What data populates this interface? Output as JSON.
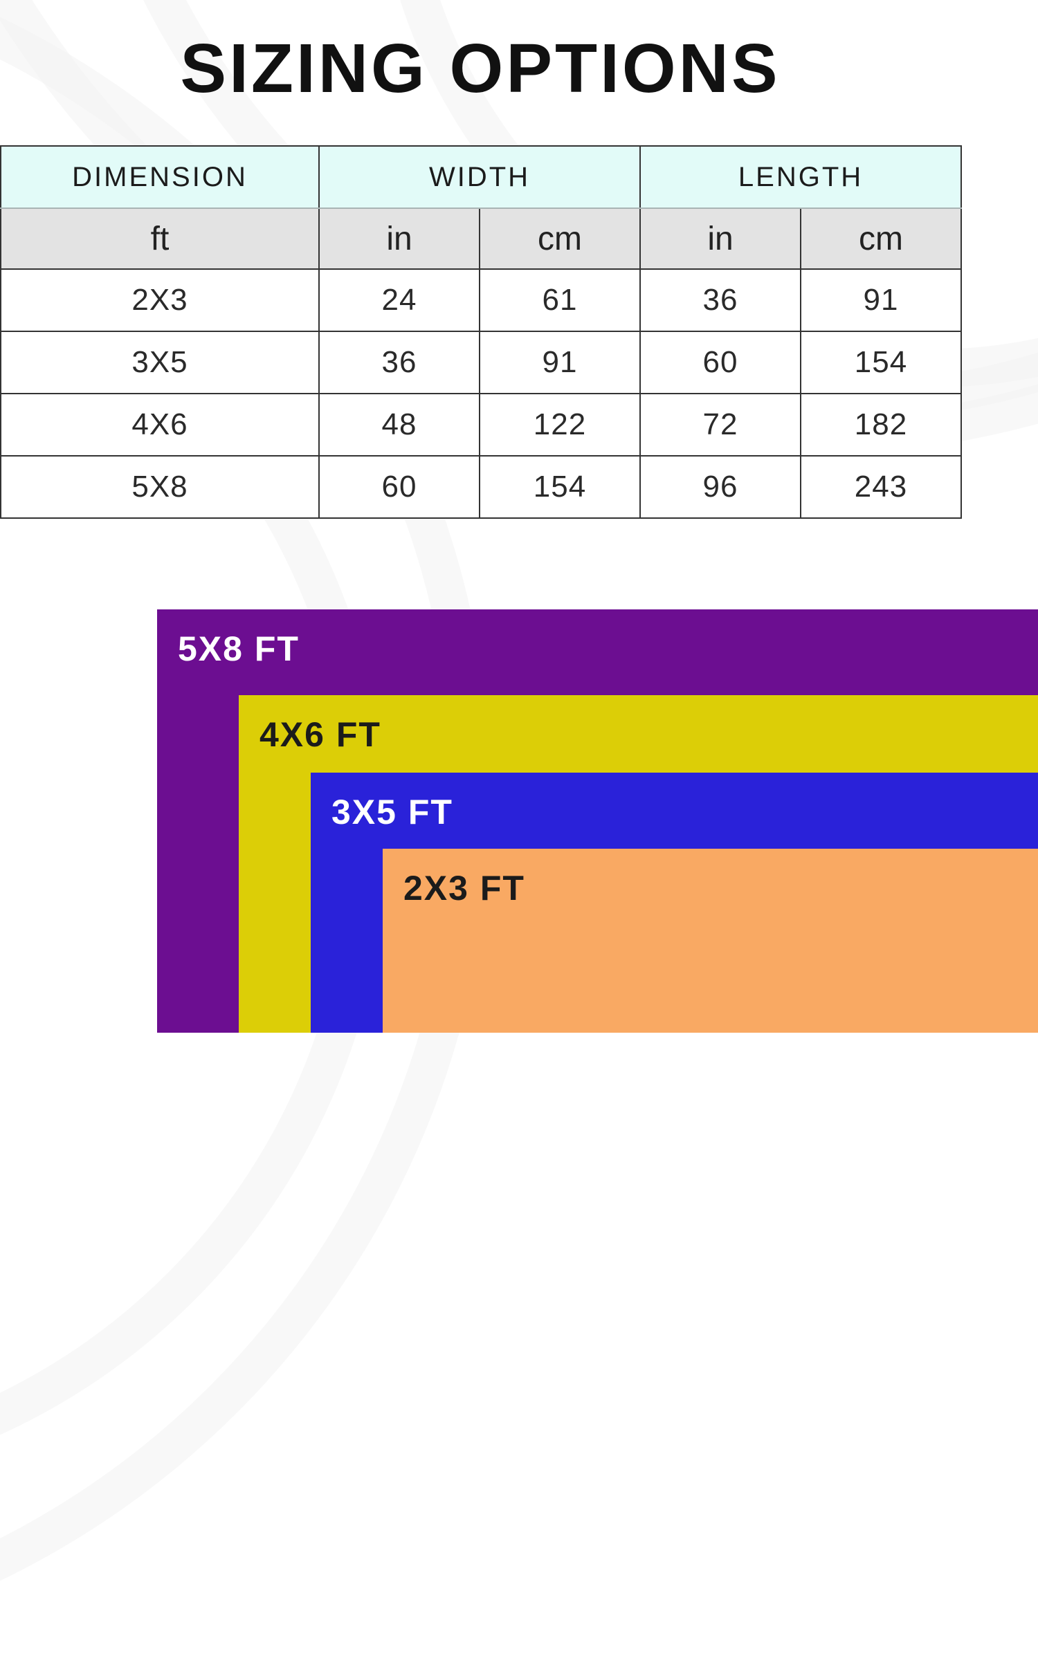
{
  "title": "SIZING OPTIONS",
  "table": {
    "headers": [
      "DIMENSION",
      "WIDTH",
      "LENGTH"
    ],
    "units": [
      "ft",
      "in",
      "cm",
      "in",
      "cm"
    ],
    "rows": [
      [
        "2X3",
        "24",
        "61",
        "36",
        "91"
      ],
      [
        "3X5",
        "36",
        "91",
        "60",
        "154"
      ],
      [
        "4X6",
        "48",
        "122",
        "72",
        "182"
      ],
      [
        "5X8",
        "60",
        "154",
        "96",
        "243"
      ]
    ],
    "header_bg": "#E2FBF8",
    "unit_bg": "#E3E3E3"
  },
  "diagram": {
    "sizes": [
      {
        "label": "5X8 FT",
        "color": "#6C0E91",
        "text_color": "#FFFFFF"
      },
      {
        "label": "4X6 FT",
        "color": "#DCCE07",
        "text_color": "#1B1B1B"
      },
      {
        "label": "3X5 FT",
        "color": "#2A22D9",
        "text_color": "#FFFFFF"
      },
      {
        "label": "2X3 FT",
        "color": "#F9A963",
        "text_color": "#1B1B1B"
      }
    ]
  }
}
